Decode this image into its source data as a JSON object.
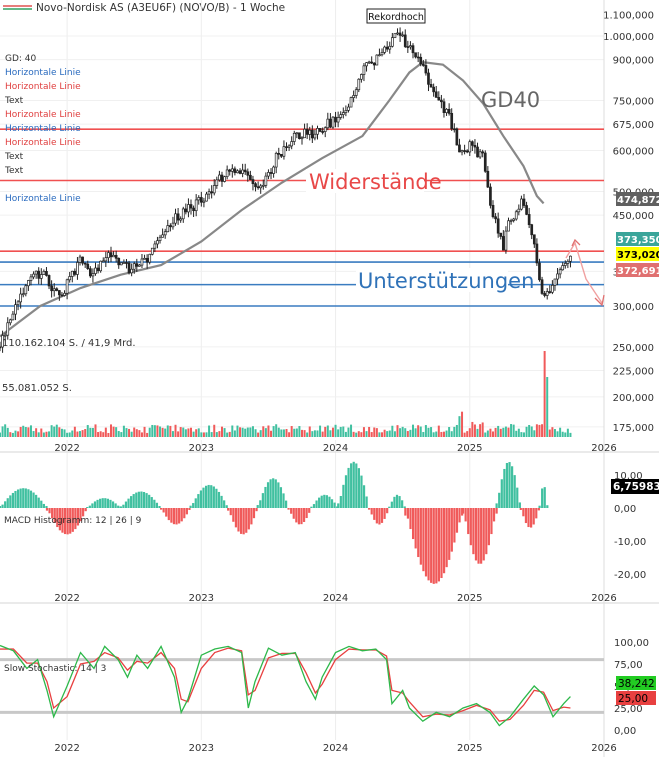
{
  "header": {
    "title": "Novo-Nordisk AS (A3EU6F) (NOVO/B) - 1 Woche"
  },
  "colors": {
    "price": "#222222",
    "ma": "#888888",
    "red_line": "#f05050",
    "blue_line": "#3a7cc0",
    "up": "#40c0a0",
    "down": "#f05a5a",
    "stoch_k": "#2db84a",
    "stoch_d": "#e84040"
  },
  "legend_items": [
    {
      "label": "GD: 40",
      "color": "#333333"
    },
    {
      "label": "Horizontale Linie",
      "color": "#2a6bbf"
    },
    {
      "label": "Horizontale Linie",
      "color": "#e04040"
    },
    {
      "label": "Text",
      "color": "#333333"
    },
    {
      "label": "Horizontale Linie",
      "color": "#e04040"
    },
    {
      "label": "Horizontale Linie",
      "color": "#2a6bbf"
    },
    {
      "label": "Horizontale Linie",
      "color": "#e04040"
    },
    {
      "label": "Text",
      "color": "#333333"
    },
    {
      "label": "Text",
      "color": "#333333"
    },
    {
      "label": "Horizontale Linie",
      "color": "#2a6bbf"
    }
  ],
  "annotations": {
    "record": "Rekordhoch",
    "gd40": "GD40",
    "resistance": "Widerstände",
    "support": "Unterstützungen",
    "vol_total": "110.162.104 S. / 41,9 Mrd.",
    "vol_last": "55.081.052 S.",
    "macd_label": "MACD Histogramm: 12 | 26 | 9",
    "stoch_label": "Slow Stochastic: 14 | 3"
  },
  "price_labels": [
    {
      "text": "474,872",
      "bg": "#606060",
      "fg": "#ffffff"
    },
    {
      "text": "373,350",
      "bg": "#3aa59a",
      "fg": "#ffffff"
    },
    {
      "text": "373,020",
      "bg": "#ffff00",
      "fg": "#000000"
    },
    {
      "text": "372,691",
      "bg": "#e07070",
      "fg": "#ffffff"
    }
  ],
  "macd_value": "6,75983",
  "stoch_values": [
    {
      "text": "38,242",
      "bg": "#22cc22",
      "fg": "#000000"
    },
    {
      "text": "25,00",
      "bg": "#e84040",
      "fg": "#000000"
    }
  ],
  "chart_data": [
    {
      "type": "candlestick",
      "title": "Novo-Nordisk AS (A3EU6F) (NOVO/B) - 1 Woche",
      "x_ticks": [
        "2022",
        "2023",
        "2024",
        "2025",
        "2026"
      ],
      "y_ticks": [
        "1.100,000",
        "1.000,000",
        "900,000",
        "750,000",
        "675,000",
        "600,000",
        "500,000",
        "450,000",
        "350,000",
        "300,000",
        "250,000",
        "225,000",
        "200,000",
        "175,000"
      ],
      "y_scale": "log",
      "ylim": [
        165,
        1150
      ],
      "xlim": [
        2021.5,
        2026.0
      ],
      "price_path": [
        [
          2021.5,
          250
        ],
        [
          2021.65,
          320
        ],
        [
          2021.8,
          350
        ],
        [
          2021.95,
          310
        ],
        [
          2022.1,
          370
        ],
        [
          2022.2,
          345
        ],
        [
          2022.3,
          375
        ],
        [
          2022.45,
          355
        ],
        [
          2022.6,
          368
        ],
        [
          2022.7,
          420
        ],
        [
          2022.85,
          450
        ],
        [
          2023.0,
          480
        ],
        [
          2023.15,
          530
        ],
        [
          2023.3,
          555
        ],
        [
          2023.45,
          500
        ],
        [
          2023.55,
          580
        ],
        [
          2023.7,
          640
        ],
        [
          2023.85,
          650
        ],
        [
          2024.0,
          690
        ],
        [
          2024.1,
          730
        ],
        [
          2024.2,
          860
        ],
        [
          2024.3,
          900
        ],
        [
          2024.4,
          960
        ],
        [
          2024.48,
          1010
        ],
        [
          2024.55,
          940
        ],
        [
          2024.65,
          870
        ],
        [
          2024.75,
          760
        ],
        [
          2024.85,
          700
        ],
        [
          2024.92,
          590
        ],
        [
          2025.0,
          610
        ],
        [
          2025.1,
          580
        ],
        [
          2025.15,
          470
        ],
        [
          2025.25,
          390
        ],
        [
          2025.3,
          440
        ],
        [
          2025.4,
          480
        ],
        [
          2025.45,
          420
        ],
        [
          2025.55,
          310
        ],
        [
          2025.62,
          330
        ],
        [
          2025.7,
          370
        ],
        [
          2025.75,
          373
        ]
      ],
      "ma_path": [
        [
          2021.5,
          262
        ],
        [
          2021.8,
          300
        ],
        [
          2022.1,
          325
        ],
        [
          2022.4,
          345
        ],
        [
          2022.7,
          360
        ],
        [
          2023.0,
          400
        ],
        [
          2023.3,
          460
        ],
        [
          2023.6,
          520
        ],
        [
          2023.9,
          580
        ],
        [
          2024.2,
          640
        ],
        [
          2024.4,
          750
        ],
        [
          2024.55,
          850
        ],
        [
          2024.65,
          890
        ],
        [
          2024.8,
          880
        ],
        [
          2024.95,
          820
        ],
        [
          2025.1,
          740
        ],
        [
          2025.25,
          640
        ],
        [
          2025.4,
          560
        ],
        [
          2025.5,
          490
        ],
        [
          2025.55,
          474
        ]
      ],
      "horizontal_lines": [
        {
          "value": 660,
          "color": "red"
        },
        {
          "value": 525,
          "color": "red"
        },
        {
          "value": 383,
          "color": "red"
        },
        {
          "value": 365,
          "color": "blue"
        },
        {
          "value": 330,
          "color": "blue"
        },
        {
          "value": 300,
          "color": "blue"
        }
      ],
      "last_price": 373.02
    },
    {
      "type": "bar",
      "title": "MACD Histogramm: 12 | 26 | 9",
      "x_ticks": [
        "2022",
        "2023",
        "2024",
        "2025",
        "2026"
      ],
      "y_ticks": [
        "10,00",
        "0,00",
        "-10,00",
        "-20,00"
      ],
      "ylim": [
        -24,
        15
      ],
      "segments": [
        {
          "x0": 2021.5,
          "x1": 2021.85,
          "peak": 6
        },
        {
          "x0": 2021.85,
          "x1": 2022.15,
          "peak": -8
        },
        {
          "x0": 2022.15,
          "x1": 2022.4,
          "peak": 3
        },
        {
          "x0": 2022.4,
          "x1": 2022.7,
          "peak": 5
        },
        {
          "x0": 2022.7,
          "x1": 2022.92,
          "peak": -5
        },
        {
          "x0": 2022.92,
          "x1": 2023.2,
          "peak": 7
        },
        {
          "x0": 2023.2,
          "x1": 2023.42,
          "peak": -8
        },
        {
          "x0": 2023.42,
          "x1": 2023.65,
          "peak": 9
        },
        {
          "x0": 2023.65,
          "x1": 2023.82,
          "peak": -5
        },
        {
          "x0": 2023.82,
          "x1": 2024.02,
          "peak": 4
        },
        {
          "x0": 2024.02,
          "x1": 2024.25,
          "peak": 14
        },
        {
          "x0": 2024.25,
          "x1": 2024.4,
          "peak": -5
        },
        {
          "x0": 2024.4,
          "x1": 2024.52,
          "peak": 4
        },
        {
          "x0": 2024.52,
          "x1": 2024.95,
          "peak": -23
        },
        {
          "x0": 2024.95,
          "x1": 2025.2,
          "peak": -17
        },
        {
          "x0": 2025.2,
          "x1": 2025.38,
          "peak": 14
        },
        {
          "x0": 2025.38,
          "x1": 2025.52,
          "peak": -6
        },
        {
          "x0": 2025.52,
          "x1": 2025.58,
          "peak": 7
        }
      ],
      "last_value": 6.75983
    },
    {
      "type": "line",
      "title": "Slow Stochastic: 14 | 3",
      "x_ticks": [
        "2022",
        "2023",
        "2024",
        "2025",
        "2026"
      ],
      "y_ticks": [
        "100,00",
        "75,00",
        "50,00",
        "25,00",
        "0,00"
      ],
      "ylim": [
        -5,
        108
      ],
      "guide_lines": [
        80,
        20
      ],
      "series": [
        {
          "name": "%K",
          "values": [
            [
              2021.5,
              96
            ],
            [
              2021.6,
              90
            ],
            [
              2021.7,
              70
            ],
            [
              2021.78,
              80
            ],
            [
              2021.85,
              45
            ],
            [
              2021.9,
              15
            ],
            [
              2022.0,
              50
            ],
            [
              2022.1,
              88
            ],
            [
              2022.2,
              70
            ],
            [
              2022.28,
              95
            ],
            [
              2022.38,
              80
            ],
            [
              2022.45,
              60
            ],
            [
              2022.52,
              85
            ],
            [
              2022.6,
              70
            ],
            [
              2022.7,
              95
            ],
            [
              2022.8,
              60
            ],
            [
              2022.85,
              20
            ],
            [
              2022.9,
              35
            ],
            [
              2023.0,
              85
            ],
            [
              2023.1,
              92
            ],
            [
              2023.2,
              95
            ],
            [
              2023.3,
              88
            ],
            [
              2023.35,
              25
            ],
            [
              2023.4,
              55
            ],
            [
              2023.5,
              93
            ],
            [
              2023.6,
              85
            ],
            [
              2023.7,
              88
            ],
            [
              2023.78,
              55
            ],
            [
              2023.85,
              35
            ],
            [
              2023.9,
              60
            ],
            [
              2024.0,
              88
            ],
            [
              2024.1,
              95
            ],
            [
              2024.2,
              90
            ],
            [
              2024.3,
              92
            ],
            [
              2024.38,
              80
            ],
            [
              2024.42,
              30
            ],
            [
              2024.5,
              45
            ],
            [
              2024.55,
              25
            ],
            [
              2024.65,
              10
            ],
            [
              2024.75,
              20
            ],
            [
              2024.85,
              15
            ],
            [
              2024.95,
              25
            ],
            [
              2025.05,
              30
            ],
            [
              2025.15,
              20
            ],
            [
              2025.22,
              5
            ],
            [
              2025.3,
              15
            ],
            [
              2025.4,
              35
            ],
            [
              2025.48,
              50
            ],
            [
              2025.55,
              40
            ],
            [
              2025.62,
              15
            ],
            [
              2025.7,
              30
            ],
            [
              2025.75,
              38
            ]
          ]
        },
        {
          "name": "%D",
          "values": [
            [
              2021.5,
              92
            ],
            [
              2021.6,
              92
            ],
            [
              2021.7,
              76
            ],
            [
              2021.78,
              76
            ],
            [
              2021.85,
              55
            ],
            [
              2021.9,
              25
            ],
            [
              2022.0,
              38
            ],
            [
              2022.1,
              75
            ],
            [
              2022.2,
              78
            ],
            [
              2022.28,
              88
            ],
            [
              2022.38,
              82
            ],
            [
              2022.45,
              68
            ],
            [
              2022.52,
              78
            ],
            [
              2022.6,
              76
            ],
            [
              2022.7,
              88
            ],
            [
              2022.8,
              70
            ],
            [
              2022.85,
              35
            ],
            [
              2022.9,
              32
            ],
            [
              2023.0,
              70
            ],
            [
              2023.1,
              88
            ],
            [
              2023.2,
              93
            ],
            [
              2023.3,
              90
            ],
            [
              2023.35,
              40
            ],
            [
              2023.4,
              45
            ],
            [
              2023.5,
              82
            ],
            [
              2023.6,
              87
            ],
            [
              2023.7,
              87
            ],
            [
              2023.78,
              65
            ],
            [
              2023.85,
              42
            ],
            [
              2023.9,
              52
            ],
            [
              2024.0,
              80
            ],
            [
              2024.1,
              92
            ],
            [
              2024.2,
              91
            ],
            [
              2024.3,
              91
            ],
            [
              2024.38,
              84
            ],
            [
              2024.42,
              45
            ],
            [
              2024.5,
              42
            ],
            [
              2024.55,
              32
            ],
            [
              2024.65,
              15
            ],
            [
              2024.75,
              18
            ],
            [
              2024.85,
              17
            ],
            [
              2024.95,
              22
            ],
            [
              2025.05,
              28
            ],
            [
              2025.15,
              23
            ],
            [
              2025.22,
              10
            ],
            [
              2025.3,
              12
            ],
            [
              2025.4,
              28
            ],
            [
              2025.48,
              45
            ],
            [
              2025.55,
              43
            ],
            [
              2025.62,
              22
            ],
            [
              2025.7,
              26
            ],
            [
              2025.75,
              25
            ]
          ]
        }
      ],
      "last_values": [
        38.242,
        25.0
      ]
    }
  ]
}
